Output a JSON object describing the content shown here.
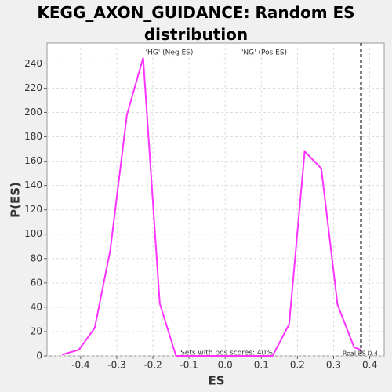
{
  "chart_data": {
    "type": "line",
    "title": "KEGG_AXON_GUIDANCE: Random ES distribution",
    "x_label": "ES",
    "y_label": "P(ES)",
    "x": [
      -0.452,
      -0.405,
      -0.361,
      -0.318,
      -0.272,
      -0.227,
      -0.181,
      -0.136,
      0.131,
      0.177,
      0.22,
      0.266,
      0.311,
      0.357,
      0.376
    ],
    "series": [
      {
        "name": "P(ES)",
        "color": "#ff33ff",
        "values": [
          1,
          5,
          23,
          87,
          198,
          245,
          43,
          0,
          0,
          26,
          168,
          154,
          42,
          7,
          5
        ]
      }
    ],
    "xlim": [
      -0.493,
      0.44
    ],
    "ylim": [
      0,
      257
    ],
    "xticks": [
      -0.4,
      -0.3,
      -0.2,
      -0.1,
      {
        "value": 0,
        "label": "0.0"
      },
      0.1,
      0.2,
      0.3,
      0.4
    ],
    "yticks": [
      0,
      20,
      40,
      60,
      80,
      100,
      120,
      140,
      160,
      180,
      200,
      220,
      240
    ],
    "grid": true,
    "real_es": 0.376,
    "annotations": {
      "neg": "'HG' (Neg ES)",
      "pos": "'NG' (Pos ES)",
      "pos_scores": "Sets with pos scores: 40%",
      "real_es": "Real ES 0.4"
    },
    "annotation_colors": {
      "neg": "#0000ff",
      "pos": "#ff0000"
    }
  }
}
